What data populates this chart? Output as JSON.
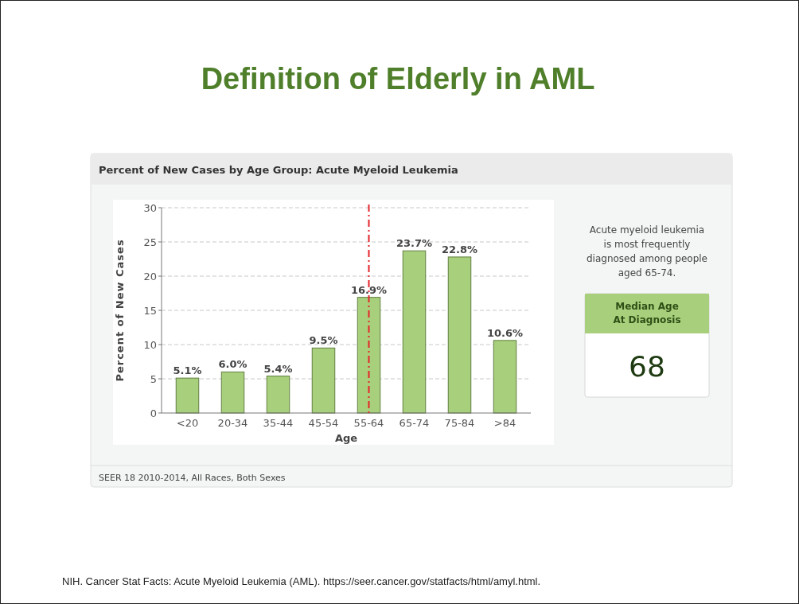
{
  "chart_data": {
    "type": "bar",
    "title": "Definition of Elderly in AML",
    "subtitle": "Percent of New Cases by Age Group: Acute Myeloid Leukemia",
    "xlabel": "Age",
    "ylabel": "Percent of New Cases",
    "categories": [
      "<20",
      "20-34",
      "35-44",
      "45-54",
      "55-64",
      "65-74",
      "75-84",
      ">84"
    ],
    "values": [
      5.1,
      6.0,
      5.4,
      9.5,
      16.9,
      23.7,
      22.8,
      10.6
    ],
    "value_labels": [
      "5.1%",
      "6.0%",
      "5.4%",
      "9.5%",
      "16.9%",
      "23.7%",
      "22.8%",
      "10.6%"
    ],
    "color": "#a8d07c",
    "ylim": [
      0,
      30
    ],
    "yticks": [
      0,
      5,
      10,
      15,
      20,
      25,
      30
    ],
    "grid": "y",
    "ref_lines": [
      {
        "axis": "x",
        "value": "55-64",
        "color": "#e3242b",
        "line_style": "dashdot"
      }
    ],
    "annotations": [
      "Acute myeloid leukemia is most frequently diagnosed among people aged 65-74.",
      "Median Age At Diagnosis",
      "68",
      "SEER 18 2010-2014, All Races, Both Sexes",
      "NIH. Cancer Stat Facts: Acute Myeloid Leukemia (AML). https://seer.cancer.gov/statfacts/html/amyl.html."
    ]
  }
}
